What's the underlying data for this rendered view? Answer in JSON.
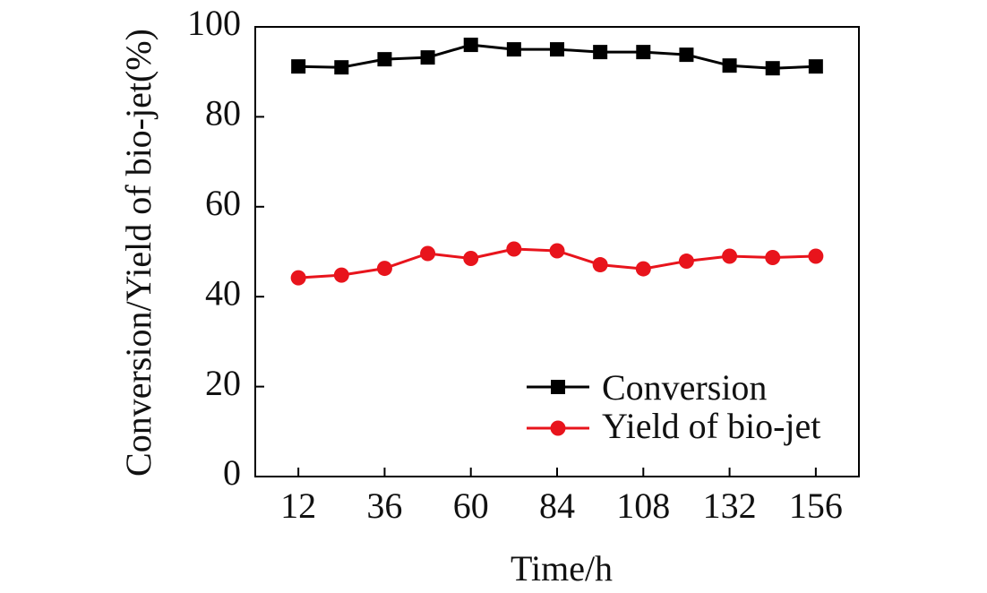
{
  "chart_data": {
    "type": "line",
    "title": "",
    "xlabel": "Time/h",
    "ylabel": "Conversion/Yield of bio-jet(%)",
    "xlim": [
      0,
      168
    ],
    "ylim": [
      0,
      100
    ],
    "x_ticks": [
      12,
      36,
      60,
      84,
      108,
      132,
      156
    ],
    "x_tick_labels": [
      "12",
      "36",
      "60",
      "84",
      "108",
      "132",
      "156"
    ],
    "y_ticks": [
      0,
      20,
      40,
      60,
      80,
      100
    ],
    "y_tick_labels": [
      "0",
      "20",
      "40",
      "60",
      "80",
      "100"
    ],
    "x": [
      12,
      24,
      36,
      48,
      60,
      72,
      84,
      96,
      108,
      120,
      132,
      144,
      156
    ],
    "series": [
      {
        "name": "Conversion",
        "marker": "square",
        "color": "#000000",
        "values": [
          91.2,
          91.0,
          92.8,
          93.2,
          96.0,
          95.0,
          95.0,
          94.4,
          94.4,
          93.8,
          91.4,
          90.8,
          91.2
        ]
      },
      {
        "name": "Yield of bio-jet",
        "marker": "circle",
        "color": "#e8141c",
        "values": [
          44.2,
          44.8,
          46.3,
          49.6,
          48.5,
          50.6,
          50.2,
          47.1,
          46.2,
          47.9,
          49.0,
          48.7,
          49.0
        ]
      }
    ],
    "legend_position": "bottom-right",
    "grid": false
  }
}
